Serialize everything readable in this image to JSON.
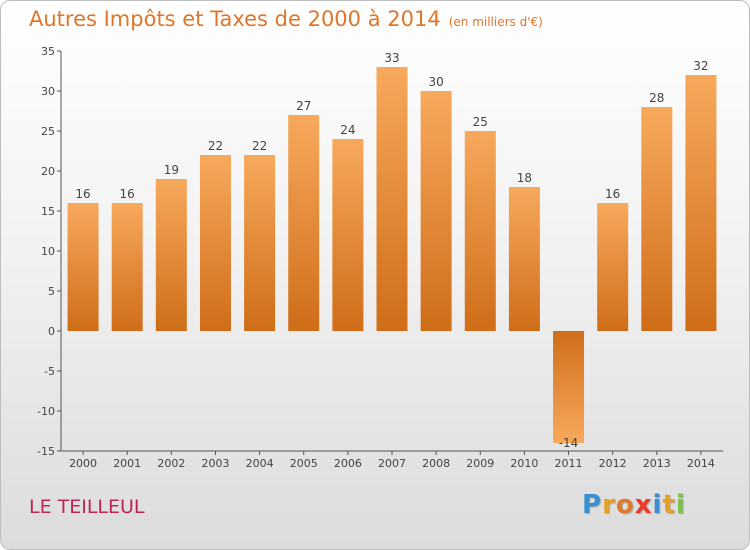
{
  "header": {
    "title": "Autres Impôts et Taxes de 2000 à 2014",
    "unit": "(en milliers d'€)"
  },
  "footer": {
    "commune": "LE TEILLEUL",
    "logo": {
      "letters": [
        "P",
        "r",
        "o",
        "x",
        "i",
        "t",
        "i"
      ],
      "colors": [
        "#3a8fd1",
        "#e8a020",
        "#e07a2a",
        "#e83a2a",
        "#3a8fd1",
        "#e8a020",
        "#7cc24a"
      ]
    }
  },
  "colors": {
    "bar_top": "#f7a95c",
    "bar_bottom": "#cf6d18",
    "axis": "#555555",
    "grid": "#e6e6e6"
  },
  "chart_data": {
    "type": "bar",
    "categories": [
      "2000",
      "2001",
      "2002",
      "2003",
      "2004",
      "2005",
      "2006",
      "2007",
      "2008",
      "2009",
      "2010",
      "2011",
      "2012",
      "2013",
      "2014"
    ],
    "values": [
      16,
      16,
      19,
      22,
      22,
      27,
      24,
      33,
      30,
      25,
      18,
      -14,
      16,
      28,
      32
    ],
    "title": "Autres Impôts et Taxes de 2000 à 2014",
    "ylim": [
      -15,
      35
    ],
    "yticks": [
      35,
      30,
      25,
      20,
      15,
      10,
      5,
      0,
      -5,
      -10,
      -15
    ],
    "grid": false
  }
}
